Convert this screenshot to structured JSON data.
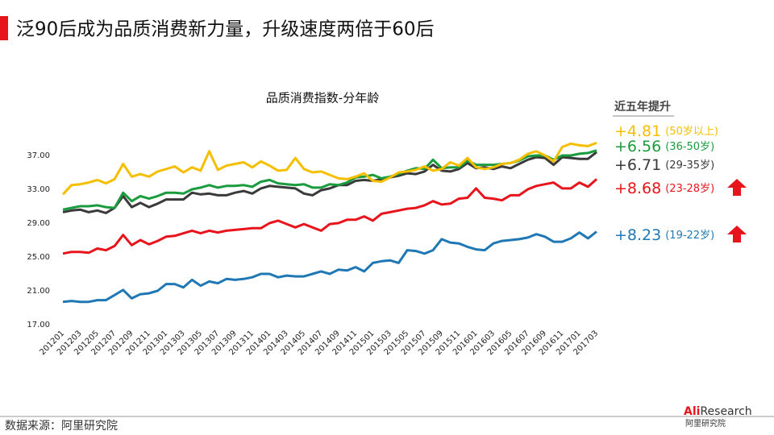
{
  "header": {
    "title": "泛90后成为品质消费新力量，升级速度两倍于60后"
  },
  "chart_data": {
    "type": "line",
    "title": "品质消费指数-分年龄",
    "legend_title": "近五年提升",
    "categories": [
      "201201",
      null,
      "201203",
      null,
      "201205",
      null,
      "201207",
      null,
      "201209",
      null,
      "201211",
      null,
      "201301",
      null,
      "201303",
      null,
      "201305",
      null,
      "201307",
      null,
      "201309",
      null,
      "201311",
      null,
      "201401",
      null,
      "201403",
      null,
      "201405",
      null,
      "201407",
      null,
      "201409",
      null,
      "201411",
      null,
      "201501",
      null,
      "201503",
      null,
      "201505",
      null,
      "201507",
      null,
      "201509",
      null,
      "201511",
      null,
      "201601",
      null,
      "201603",
      null,
      "201605",
      null,
      "201607",
      null,
      "201609",
      null,
      "201611",
      null,
      "201701",
      null,
      "201703"
    ],
    "ylim": [
      17,
      37
    ],
    "yticks": [
      {
        "value": 17,
        "label": "17.00"
      },
      {
        "value": 21,
        "label": "21.00"
      },
      {
        "value": 25,
        "label": "25.00"
      },
      {
        "value": 29,
        "label": "29.00"
      },
      {
        "value": 33,
        "label": "33.00"
      },
      {
        "value": 37,
        "label": "37.00"
      }
    ],
    "grid": false,
    "series": [
      {
        "name": "(50岁以上)",
        "color": "#f5bf00",
        "change": {
          "value": 4.81,
          "label": "+4.81"
        },
        "values": [
          32.4,
          33.5,
          33.6,
          33.8,
          34.1,
          33.7,
          34.2,
          36.0,
          34.5,
          34.8,
          34.5,
          35.1,
          35.4,
          35.7,
          35.0,
          35.6,
          35.2,
          37.5,
          35.3,
          35.8,
          36.0,
          36.2,
          35.6,
          36.3,
          35.8,
          35.2,
          35.3,
          36.7,
          35.4,
          35.0,
          35.1,
          34.7,
          34.3,
          34.2,
          34.5,
          34.9,
          34.0,
          33.9,
          34.4,
          35.0,
          35.1,
          35.3,
          35.7,
          35.2,
          35.4,
          36.2,
          35.8,
          36.7,
          35.6,
          35.4,
          35.6,
          36.0,
          36.1,
          36.5,
          37.2,
          37.5,
          37.0,
          36.3,
          38.0,
          38.4,
          38.2,
          38.1,
          38.5
        ]
      },
      {
        "name": "(36-50岁)",
        "color": "#1a9c3e",
        "change": {
          "value": 6.56,
          "label": "+6.56"
        },
        "values": [
          30.6,
          30.8,
          31.0,
          31.0,
          31.1,
          30.9,
          30.8,
          32.6,
          31.6,
          32.2,
          31.9,
          32.2,
          32.6,
          32.6,
          32.5,
          33.0,
          33.2,
          33.5,
          33.2,
          33.4,
          33.4,
          33.5,
          33.3,
          33.9,
          34.1,
          33.7,
          33.6,
          33.5,
          33.6,
          33.2,
          33.2,
          33.6,
          33.5,
          33.8,
          34.4,
          34.5,
          34.7,
          34.3,
          34.5,
          34.8,
          35.2,
          35.5,
          35.4,
          36.5,
          35.5,
          35.6,
          35.6,
          36.4,
          35.9,
          35.9,
          35.9,
          36.0,
          36.1,
          36.4,
          36.9,
          37.0,
          37.0,
          36.5,
          37.0,
          37.0,
          37.2,
          37.3,
          37.6
        ]
      },
      {
        "name": "(29-35岁)",
        "color": "#3a3a3a",
        "change": {
          "value": 6.71,
          "label": "+6.71"
        },
        "values": [
          30.3,
          30.5,
          30.6,
          30.3,
          30.5,
          30.2,
          30.8,
          32.2,
          30.9,
          31.4,
          30.9,
          31.3,
          31.8,
          31.8,
          31.8,
          32.6,
          32.4,
          32.5,
          32.3,
          32.3,
          32.6,
          32.8,
          32.5,
          33.1,
          33.4,
          33.3,
          33.2,
          33.1,
          32.5,
          32.3,
          32.9,
          33.1,
          33.5,
          33.5,
          34.0,
          34.1,
          34.0,
          34.2,
          34.4,
          34.6,
          34.9,
          34.8,
          35.1,
          35.9,
          35.2,
          35.1,
          35.4,
          36.1,
          35.5,
          35.6,
          35.4,
          35.7,
          35.5,
          36.0,
          36.5,
          36.8,
          36.7,
          35.9,
          36.8,
          36.7,
          36.6,
          36.6,
          37.4
        ]
      },
      {
        "name": "(23-28岁)",
        "color": "#e8141c",
        "change": {
          "value": 8.68,
          "label": "+8.68"
        },
        "values": [
          25.4,
          25.6,
          25.6,
          25.5,
          26.0,
          25.8,
          26.3,
          27.6,
          26.4,
          27.0,
          26.5,
          26.9,
          27.4,
          27.5,
          27.8,
          28.1,
          27.8,
          28.1,
          27.9,
          28.1,
          28.2,
          28.3,
          28.4,
          28.4,
          29.0,
          29.3,
          28.9,
          28.5,
          28.9,
          28.5,
          28.1,
          28.9,
          29.0,
          29.4,
          29.4,
          29.8,
          29.3,
          30.1,
          30.3,
          30.5,
          30.7,
          30.8,
          31.1,
          31.6,
          31.2,
          31.3,
          31.9,
          32.0,
          33.1,
          32.0,
          31.9,
          31.7,
          32.3,
          32.3,
          33.0,
          33.4,
          33.6,
          33.8,
          33.1,
          33.1,
          33.8,
          33.3,
          34.2
        ]
      },
      {
        "name": "(19-22岁)",
        "color": "#1f78b4",
        "change": {
          "value": 8.23,
          "label": "+8.23"
        },
        "values": [
          19.7,
          19.8,
          19.7,
          19.7,
          19.9,
          19.9,
          20.5,
          21.1,
          20.1,
          20.6,
          20.7,
          21.0,
          21.8,
          21.8,
          21.4,
          22.3,
          21.6,
          22.1,
          21.9,
          22.4,
          22.3,
          22.4,
          22.6,
          23.0,
          23.0,
          22.6,
          22.8,
          22.7,
          22.7,
          23.0,
          23.3,
          23.0,
          23.5,
          23.4,
          23.8,
          23.3,
          24.3,
          24.5,
          24.6,
          24.3,
          25.8,
          25.7,
          25.4,
          25.8,
          27.1,
          26.7,
          26.6,
          26.2,
          25.9,
          25.8,
          26.6,
          26.9,
          27.0,
          27.1,
          27.3,
          27.7,
          27.4,
          26.8,
          26.8,
          27.2,
          27.9,
          27.2,
          28.0
        ]
      }
    ]
  },
  "footer": {
    "source": "数据来源：阿里研究院",
    "logo_prefix": "Ali",
    "logo_main": "Research",
    "logo_sub": "阿里研究院"
  }
}
